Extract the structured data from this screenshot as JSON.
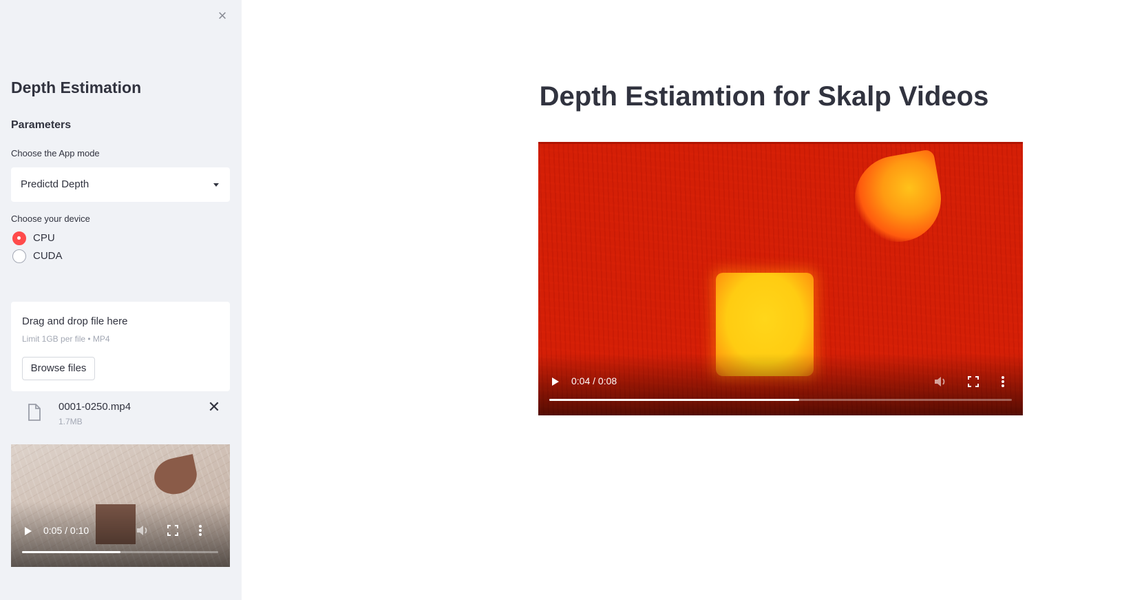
{
  "sidebar": {
    "close_glyph": "×",
    "title": "Depth Estimation",
    "subtitle": "Parameters",
    "app_mode": {
      "label": "Choose the App mode",
      "selected": "Predictd Depth"
    },
    "device": {
      "label": "Choose your device",
      "options": [
        {
          "label": "CPU",
          "selected": true
        },
        {
          "label": "CUDA",
          "selected": false
        }
      ]
    },
    "uploader": {
      "title": "Drag and drop file here",
      "limit": "Limit 1GB per file • MP4",
      "button": "Browse files"
    },
    "file": {
      "name": "0001-0250.mp4",
      "size": "1.7MB",
      "remove_glyph": "✕"
    },
    "input_video": {
      "time": "0:05 / 0:10",
      "progress": 0.5
    }
  },
  "main": {
    "title": "Depth Estiamtion for Skalp Videos",
    "output_video": {
      "time": "0:04 / 0:08",
      "progress": 0.54
    }
  },
  "colors": {
    "accent": "#ff4b4b",
    "sidebar_bg": "#f0f2f6",
    "text": "#31333f"
  },
  "icons": [
    "close-icon",
    "file-icon",
    "play-icon",
    "volume-icon",
    "fullscreen-icon",
    "more-options-icon",
    "chevron-down-icon"
  ]
}
